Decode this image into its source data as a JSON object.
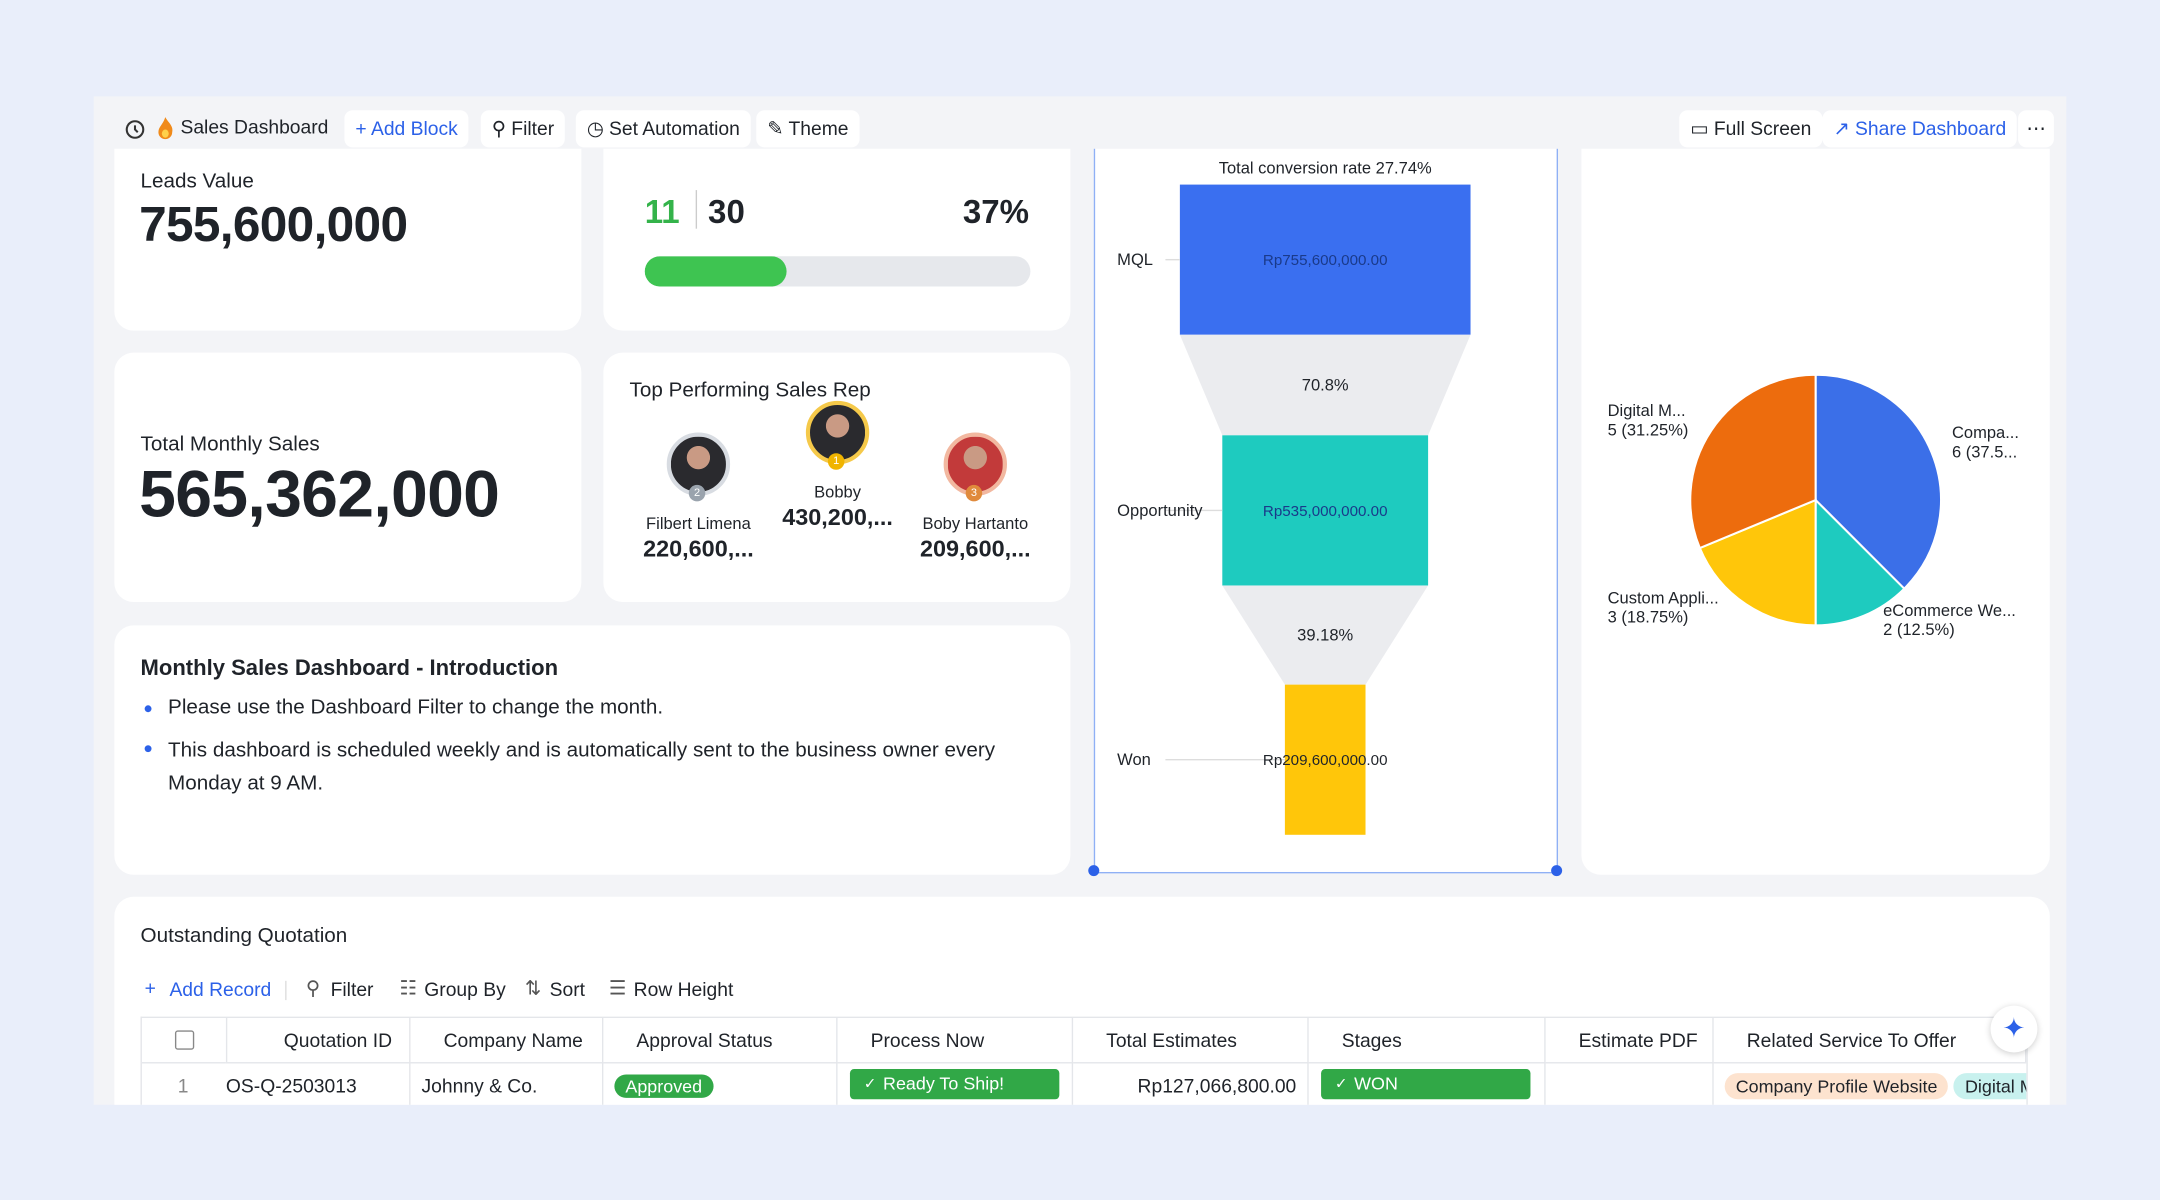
{
  "toolbar": {
    "title": "Sales Dashboard",
    "buttons": [
      "Add Block",
      "Filter",
      "Set Automation",
      "Theme"
    ],
    "right_buttons": [
      "Full Screen",
      "Share Dashboard"
    ]
  },
  "leads": {
    "label": "Leads Value",
    "value": "755,600,000"
  },
  "progress": {
    "done": 11,
    "total": 30,
    "percent_label": "37%"
  },
  "monthly": {
    "label": "Total Monthly Sales",
    "value": "565,362,000"
  },
  "top_reps": {
    "title": "Top Performing Sales Rep",
    "reps": [
      {
        "name": "Filbert Limena",
        "amount": "220,600,...",
        "rank": "2"
      },
      {
        "name": "Bobby",
        "amount": "430,200,...",
        "rank": "1"
      },
      {
        "name": "Boby Hartanto",
        "amount": "209,600,...",
        "rank": "3"
      }
    ]
  },
  "intro": {
    "title": "Monthly Sales Dashboard - Introduction",
    "bullets": [
      "Please use the Dashboard Filter to change the month.",
      "This dashboard is scheduled weekly and is automatically sent to the business owner every Monday at 9 AM."
    ]
  },
  "funnel": {
    "type": "funnel",
    "title": "Total conversion rate 27.74%",
    "categories": [
      "MQL",
      "Opportunity",
      "Won"
    ],
    "values": [
      755600000,
      535000000,
      209600000
    ],
    "value_labels": [
      "Rp755,600,000.00",
      "Rp535,000,000.00",
      "Rp209,600,000.00"
    ],
    "conversion_labels": [
      "70.8%",
      "39.18%"
    ],
    "colors": [
      "#3a6ff0",
      "#1ecbbf",
      "#ffc60a"
    ]
  },
  "pie": {
    "type": "pie",
    "categories": [
      "Compa...",
      "eCommerce We...",
      "Custom Appli...",
      "Digital M..."
    ],
    "values": [
      6,
      2,
      3,
      5
    ],
    "value_labels": [
      "6 (37.5...",
      "2 (12.5%)",
      "3 (18.75%)",
      "5 (31.25%)"
    ],
    "colors": [
      "#3b6fe8",
      "#1ecbbf",
      "#ffc60a",
      "#ed6c0d"
    ]
  },
  "table": {
    "title": "Outstanding Quotation",
    "tools": [
      "Add Record",
      "Filter",
      "Group By",
      "Sort",
      "Row Height"
    ],
    "columns": [
      "Quotation ID",
      "Company Name",
      "Approval Status",
      "Process Now",
      "Total Estimates",
      "Stages",
      "Estimate PDF",
      "Related Service To Offer"
    ],
    "rows": [
      {
        "index": "1",
        "quotation_id": "OS-Q-2503013",
        "company": "Johnny & Co.",
        "approval": "Approved",
        "process": "Ready To Ship!",
        "total": "Rp127,066,800.00",
        "stage": "WON",
        "services": [
          "Company Profile Website",
          "Digital M"
        ]
      }
    ]
  }
}
